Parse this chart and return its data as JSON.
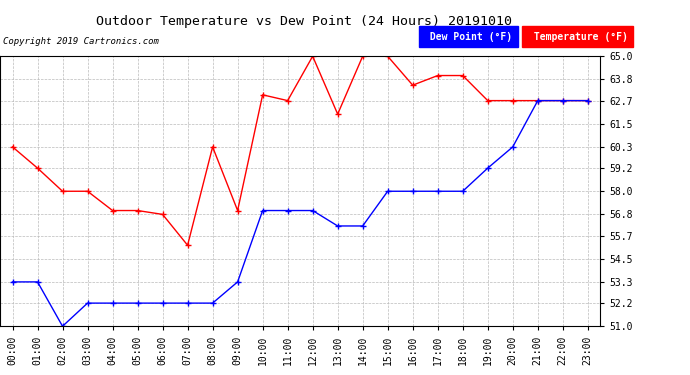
{
  "title": "Outdoor Temperature vs Dew Point (24 Hours) 20191010",
  "copyright": "Copyright 2019 Cartronics.com",
  "hours": [
    "00:00",
    "01:00",
    "02:00",
    "03:00",
    "04:00",
    "05:00",
    "06:00",
    "07:00",
    "08:00",
    "09:00",
    "10:00",
    "11:00",
    "12:00",
    "13:00",
    "14:00",
    "15:00",
    "16:00",
    "17:00",
    "18:00",
    "19:00",
    "20:00",
    "21:00",
    "22:00",
    "23:00"
  ],
  "temperature": [
    60.3,
    59.2,
    58.0,
    58.0,
    57.0,
    57.0,
    56.8,
    55.2,
    60.3,
    57.0,
    63.0,
    62.7,
    65.0,
    62.0,
    65.0,
    65.0,
    63.5,
    64.0,
    64.0,
    62.7,
    62.7,
    62.7,
    62.7,
    62.7
  ],
  "dew_point": [
    53.3,
    53.3,
    51.0,
    52.2,
    52.2,
    52.2,
    52.2,
    52.2,
    52.2,
    53.3,
    57.0,
    57.0,
    57.0,
    56.2,
    56.2,
    58.0,
    58.0,
    58.0,
    58.0,
    59.2,
    60.3,
    62.7,
    62.7,
    62.7
  ],
  "ylim": [
    51.0,
    65.0
  ],
  "yticks": [
    51.0,
    52.2,
    53.3,
    54.5,
    55.7,
    56.8,
    58.0,
    59.2,
    60.3,
    61.5,
    62.7,
    63.8,
    65.0
  ],
  "temp_color": "red",
  "dew_color": "blue",
  "background_color": "#ffffff",
  "grid_color": "#bbbbbb"
}
